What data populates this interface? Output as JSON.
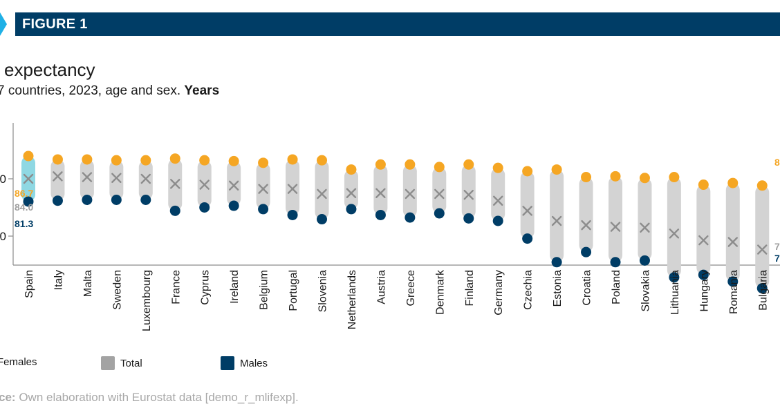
{
  "header": {
    "label": "FIGURE 1"
  },
  "title": "expectancy",
  "subtitle": {
    "text": "7 countries, 2023, age and sex.",
    "unit": "Years"
  },
  "legend": {
    "females": "Females",
    "total": "Total",
    "males": "Males"
  },
  "source": {
    "label": "ce:",
    "text": "Own elaboration with Eurostat data [demo_r_mlifexp]."
  },
  "colors": {
    "banner": "#003d66",
    "accent": "#1fb0e6",
    "females": "#f5a623",
    "total": "#8c8c8c",
    "males": "#003d66",
    "range_bar": "#d3d3d3",
    "highlight_bar": "#8fd8e3",
    "eu_female_label": "#f5a623",
    "eu_total_label": "#9e9e9e",
    "eu_male_label": "#003d66"
  },
  "chart_data": {
    "type": "dot-range",
    "categories": [
      "Spain",
      "Italy",
      "Malta",
      "Sweden",
      "Luxembourg",
      "France",
      "Cyprus",
      "Ireland",
      "Belgium",
      "Portugal",
      "Slovenia",
      "Netherlands",
      "Austria",
      "Greece",
      "Denmark",
      "Finland",
      "Germany",
      "Czechia",
      "Estonia",
      "Croatia",
      "Poland",
      "Slovakia",
      "Lithuania",
      "Hungary",
      "Romania",
      "Bulgaria"
    ],
    "highlight": "Spain",
    "y_ticks": [
      "0",
      "0"
    ],
    "series": [
      {
        "name": "Females",
        "values": [
          86.7,
          86.3,
          86.3,
          86.2,
          86.2,
          86.4,
          86.2,
          86.1,
          85.9,
          86.3,
          86.2,
          85.1,
          85.7,
          85.7,
          85.4,
          85.7,
          85.3,
          84.9,
          85.1,
          84.2,
          84.3,
          84.1,
          84.2,
          83.3,
          83.5,
          83.2
        ]
      },
      {
        "name": "Total",
        "values": [
          84.0,
          84.3,
          84.2,
          84.1,
          84.0,
          83.4,
          83.3,
          83.2,
          82.8,
          82.8,
          82.2,
          82.3,
          82.3,
          82.2,
          82.2,
          82.1,
          81.4,
          80.2,
          79.0,
          78.5,
          78.3,
          78.2,
          77.5,
          76.7,
          76.5,
          75.6
        ]
      },
      {
        "name": "Males",
        "values": [
          81.3,
          81.4,
          81.5,
          81.5,
          81.5,
          80.2,
          80.6,
          80.8,
          80.4,
          79.7,
          79.2,
          80.4,
          79.7,
          79.4,
          79.9,
          79.3,
          79.0,
          76.9,
          74.1,
          75.3,
          74.1,
          74.3,
          72.3,
          72.6,
          71.8,
          71.0
        ]
      }
    ],
    "eu_reference": {
      "females": "86.7",
      "total": "84.0",
      "males": "81.3"
    },
    "right_edge_labels": [
      "8",
      "7",
      "7"
    ]
  }
}
